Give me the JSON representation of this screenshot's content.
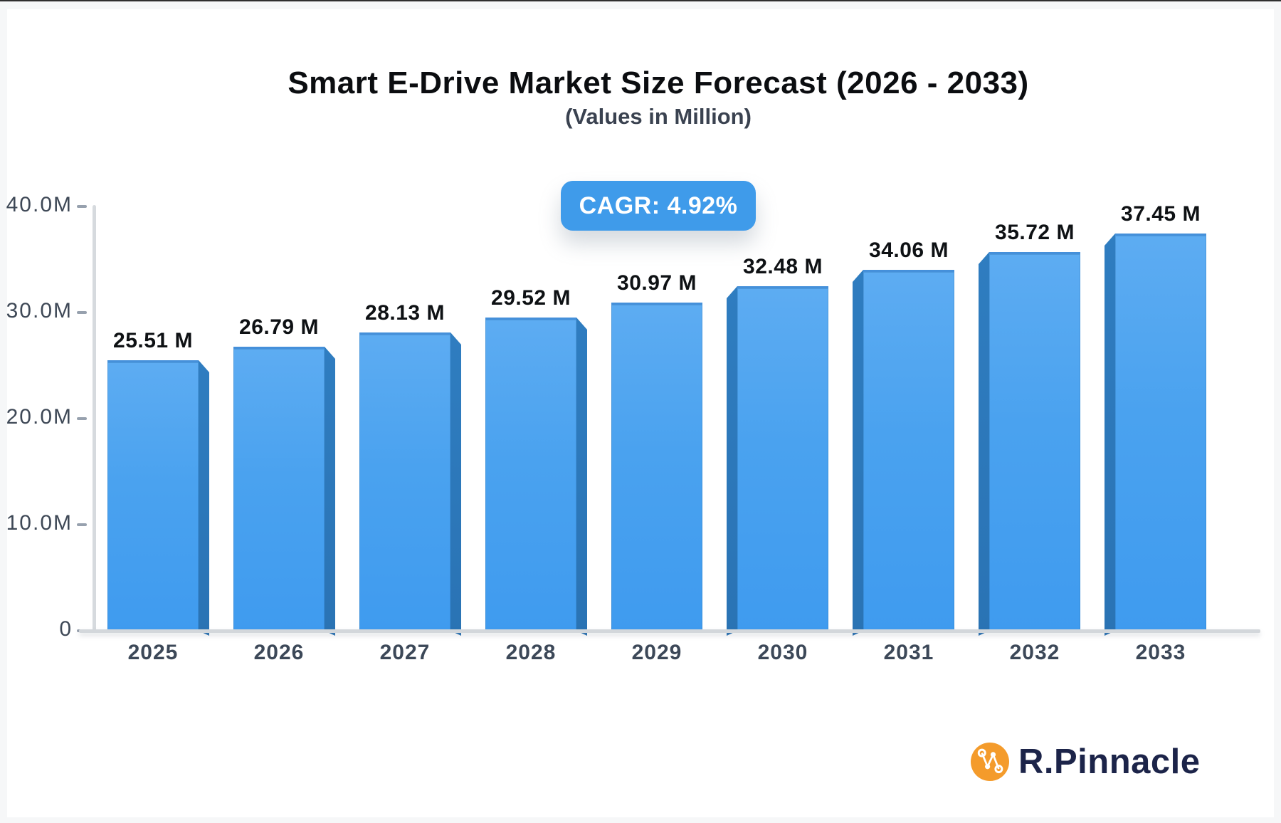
{
  "header": {
    "title": "Smart E-Drive Market Size Forecast (2026 - 2033)",
    "subtitle": "(Values in Million)"
  },
  "badge": {
    "label": "CAGR: 4.92%",
    "color": "#3F9BEA"
  },
  "chart_data": {
    "type": "bar",
    "title": "Smart E-Drive Market Size Forecast (2026 - 2033)",
    "subtitle": "(Values in Million)",
    "unit": "Million",
    "cagr_label": "CAGR: 4.92%",
    "categories": [
      "2025",
      "2026",
      "2027",
      "2028",
      "2029",
      "2030",
      "2031",
      "2032",
      "2033"
    ],
    "values": [
      25.51,
      26.79,
      28.13,
      29.52,
      30.97,
      32.48,
      34.06,
      35.72,
      37.45
    ],
    "value_labels": [
      "25.51 M",
      "26.79 M",
      "28.13 M",
      "29.52 M",
      "30.97 M",
      "32.48 M",
      "34.06 M",
      "35.72 M",
      "37.45 M"
    ],
    "ylim": [
      0,
      40
    ],
    "y_ticks": [
      {
        "label": "40.0M",
        "value": 40
      },
      {
        "label": "30.0M",
        "value": 30
      },
      {
        "label": "20.0M",
        "value": 20
      },
      {
        "label": "10.0M",
        "value": 10
      },
      {
        "label": "0",
        "value": 0
      }
    ],
    "grid": false,
    "legend": null,
    "bar_color_top": "#5DACF2",
    "bar_color_bottom": "#3F9BEF",
    "bar_side_color": "#2D7ABD"
  },
  "logo": {
    "text": "R.Pinnacle",
    "icon": "network-nodes-icon",
    "icon_color": "#F49B2B",
    "text_color": "#1C2449"
  }
}
